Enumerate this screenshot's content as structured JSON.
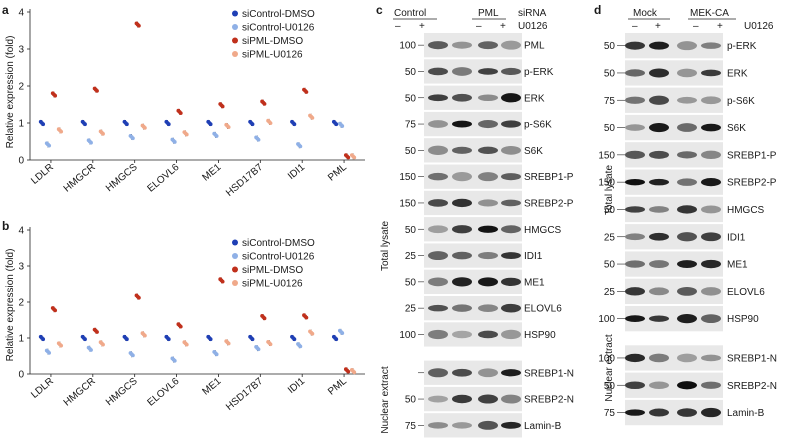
{
  "panels": {
    "a": {
      "letter": "a"
    },
    "b": {
      "letter": "b"
    },
    "c": {
      "letter": "c"
    },
    "d": {
      "letter": "d"
    }
  },
  "legend": [
    "siControl-DMSO",
    "siControl-U0126",
    "siPML-DMSO",
    "siPML-U0126"
  ],
  "colors": {
    "siControl-DMSO": "#1f3fb5",
    "siControl-U0126": "#8fb0e6",
    "siPML-DMSO": "#c0301c",
    "siPML-U0126": "#f0a98a"
  },
  "chart_data": [
    {
      "type": "scatter",
      "panel": "a",
      "ylabel": "Relative expression (fold)",
      "ylim": [
        0,
        4
      ],
      "yticks": [
        0,
        1,
        2,
        3,
        4
      ],
      "categories": [
        "LDLR",
        "HMGCR",
        "HMGCS",
        "ELOVL6",
        "ME1",
        "HSD17B7",
        "IDI1",
        "PML"
      ],
      "series": [
        {
          "name": "siControl-DMSO",
          "values": [
            1.0,
            1.0,
            1.0,
            1.0,
            1.0,
            1.0,
            1.0,
            1.0
          ]
        },
        {
          "name": "siControl-U0126",
          "values": [
            0.42,
            0.5,
            0.62,
            0.52,
            0.68,
            0.58,
            0.4,
            0.95
          ]
        },
        {
          "name": "siPML-DMSO",
          "values": [
            1.77,
            1.9,
            3.66,
            1.3,
            1.48,
            1.55,
            1.87,
            0.1
          ]
        },
        {
          "name": "siPML-U0126",
          "values": [
            0.8,
            0.74,
            0.9,
            0.72,
            0.92,
            1.03,
            1.17,
            0.1
          ]
        }
      ]
    },
    {
      "type": "scatter",
      "panel": "b",
      "ylabel": "Relative expression (fold)",
      "ylim": [
        0,
        4
      ],
      "yticks": [
        0,
        1,
        2,
        3,
        4
      ],
      "categories": [
        "LDLR",
        "HMGCR",
        "HMGCS",
        "ELOVL6",
        "ME1",
        "HSD17B7",
        "IDI1",
        "PML"
      ],
      "series": [
        {
          "name": "siControl-DMSO",
          "values": [
            1.0,
            1.0,
            1.0,
            1.0,
            1.0,
            1.0,
            1.0,
            1.0
          ]
        },
        {
          "name": "siControl-U0126",
          "values": [
            0.62,
            0.7,
            0.55,
            0.4,
            0.58,
            0.72,
            0.8,
            1.17
          ]
        },
        {
          "name": "siPML-DMSO",
          "values": [
            1.8,
            1.2,
            2.15,
            1.35,
            2.6,
            1.58,
            1.6,
            0.1
          ]
        },
        {
          "name": "siPML-U0126",
          "values": [
            0.82,
            0.85,
            1.1,
            0.85,
            0.88,
            0.86,
            1.15,
            0.08
          ]
        }
      ]
    }
  ],
  "blot_c": {
    "side_label": "Total lysate",
    "side_label_2": "Nuclear extract",
    "group_labels": [
      "Control",
      "PML"
    ],
    "condition_labels": [
      "siRNA",
      "U0126"
    ],
    "lane_signs": [
      "–",
      "+",
      "–",
      "+"
    ],
    "rows": [
      {
        "name": "PML",
        "marker": "100"
      },
      {
        "name": "p-ERK",
        "marker": "50"
      },
      {
        "name": "ERK",
        "marker": "50"
      },
      {
        "name": "p-S6K",
        "marker": "75"
      },
      {
        "name": "S6K",
        "marker": "50"
      },
      {
        "name": "SREBP1-P",
        "marker": "150"
      },
      {
        "name": "SREBP2-P",
        "marker": "150"
      },
      {
        "name": "HMGCS",
        "marker": "50"
      },
      {
        "name": "IDI1",
        "marker": "25"
      },
      {
        "name": "ME1",
        "marker": "50"
      },
      {
        "name": "ELOVL6",
        "marker": "25"
      },
      {
        "name": "HSP90",
        "marker": "100"
      },
      {
        "name": "SREBP1-N",
        "marker": ""
      },
      {
        "name": "SREBP2-N",
        "marker": "50"
      },
      {
        "name": "Lamin-B",
        "marker": "75"
      }
    ]
  },
  "blot_d": {
    "side_label": "Total lysate",
    "side_label_2": "Nuclear extract",
    "group_labels": [
      "Mock",
      "MEK-CA"
    ],
    "condition_labels": [
      "U0126"
    ],
    "lane_signs": [
      "–",
      "+",
      "–",
      "+"
    ],
    "rows": [
      {
        "name": "p-ERK",
        "marker": "50"
      },
      {
        "name": "ERK",
        "marker": "50"
      },
      {
        "name": "p-S6K",
        "marker": "75"
      },
      {
        "name": "S6K",
        "marker": "50"
      },
      {
        "name": "SREBP1-P",
        "marker": "150"
      },
      {
        "name": "SREBP2-P",
        "marker": "150"
      },
      {
        "name": "HMGCS",
        "marker": "50"
      },
      {
        "name": "IDI1",
        "marker": "25"
      },
      {
        "name": "ME1",
        "marker": "50"
      },
      {
        "name": "ELOVL6",
        "marker": "25"
      },
      {
        "name": "HSP90",
        "marker": "100"
      },
      {
        "name": "SREBP1-N",
        "marker": "100"
      },
      {
        "name": "SREBP2-N",
        "marker": "50"
      },
      {
        "name": "Lamin-B",
        "marker": "75"
      }
    ]
  }
}
